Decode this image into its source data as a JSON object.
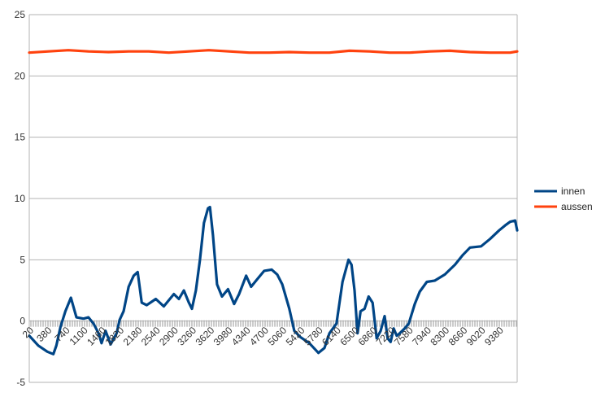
{
  "chart_data": {
    "type": "line",
    "title": "",
    "xlabel": "",
    "ylabel": "",
    "ylim": [
      -5,
      25
    ],
    "xlim": [
      20,
      9740
    ],
    "y_ticks": [
      "25",
      "20",
      "15",
      "10",
      "5",
      "0",
      "-5"
    ],
    "x_tick_labels": [
      "20",
      "380",
      "740",
      "1100",
      "1460",
      "1820",
      "2180",
      "2540",
      "2900",
      "3260",
      "3620",
      "3980",
      "4340",
      "4700",
      "5060",
      "5420",
      "5780",
      "6140",
      "6500",
      "6860",
      "7220",
      "7580",
      "7940",
      "8300",
      "8660",
      "9020",
      "9380"
    ],
    "grid": true,
    "legend_position": "right",
    "series": [
      {
        "name": "innen",
        "color": "#004586",
        "x": [
          20,
          200,
          380,
          500,
          560,
          640,
          740,
          850,
          960,
          1100,
          1200,
          1300,
          1400,
          1460,
          1540,
          1640,
          1760,
          1820,
          1900,
          2000,
          2100,
          2180,
          2260,
          2360,
          2540,
          2700,
          2900,
          3000,
          3100,
          3200,
          3260,
          3340,
          3420,
          3500,
          3580,
          3620,
          3680,
          3760,
          3860,
          3980,
          4100,
          4200,
          4340,
          4440,
          4560,
          4700,
          4850,
          4960,
          5060,
          5200,
          5300,
          5420,
          5600,
          5780,
          5900,
          6000,
          6140,
          6260,
          6380,
          6440,
          6500,
          6560,
          6620,
          6700,
          6780,
          6860,
          6940,
          7020,
          7100,
          7160,
          7220,
          7280,
          7340,
          7400,
          7500,
          7580,
          7700,
          7800,
          7940,
          8100,
          8300,
          8500,
          8660,
          8800,
          9020,
          9200,
          9380,
          9500,
          9600,
          9700,
          9740
        ],
        "y": [
          -1.2,
          -2.0,
          -2.5,
          -2.7,
          -2.0,
          -0.5,
          0.8,
          1.9,
          0.3,
          0.2,
          0.3,
          -0.2,
          -1.0,
          -1.8,
          -0.8,
          -1.9,
          -1.0,
          0.1,
          0.8,
          2.8,
          3.7,
          4.0,
          1.5,
          1.3,
          1.8,
          1.2,
          2.2,
          1.8,
          2.5,
          1.5,
          1.0,
          2.5,
          5.0,
          8.0,
          9.2,
          9.3,
          7.0,
          3.0,
          2.0,
          2.6,
          1.4,
          2.2,
          3.7,
          2.8,
          3.4,
          4.1,
          4.2,
          3.8,
          3.0,
          1.0,
          -0.8,
          -1.3,
          -1.8,
          -2.6,
          -2.2,
          -1.0,
          -0.2,
          3.2,
          5.0,
          4.6,
          2.5,
          -1.0,
          0.8,
          1.0,
          2.0,
          1.5,
          -1.4,
          -0.8,
          0.4,
          -1.4,
          -1.7,
          -0.6,
          -1.2,
          -1.0,
          -0.6,
          -0.2,
          1.4,
          2.4,
          3.2,
          3.3,
          3.8,
          4.6,
          5.4,
          6.0,
          6.1,
          6.7,
          7.4,
          7.8,
          8.1,
          8.2,
          7.4
        ]
      },
      {
        "name": "aussen",
        "color": "#ff420e",
        "x": [
          20,
          400,
          800,
          1200,
          1600,
          2000,
          2400,
          2800,
          3200,
          3600,
          4000,
          4400,
          4800,
          5200,
          5600,
          6000,
          6400,
          6800,
          7200,
          7600,
          8000,
          8400,
          8800,
          9200,
          9600,
          9740
        ],
        "y": [
          21.9,
          22.0,
          22.1,
          22.0,
          21.95,
          22.0,
          22.0,
          21.9,
          22.0,
          22.1,
          22.0,
          21.9,
          21.9,
          21.95,
          21.9,
          21.9,
          22.05,
          22.0,
          21.9,
          21.9,
          22.0,
          22.05,
          21.95,
          21.9,
          21.9,
          22.0
        ]
      }
    ]
  }
}
